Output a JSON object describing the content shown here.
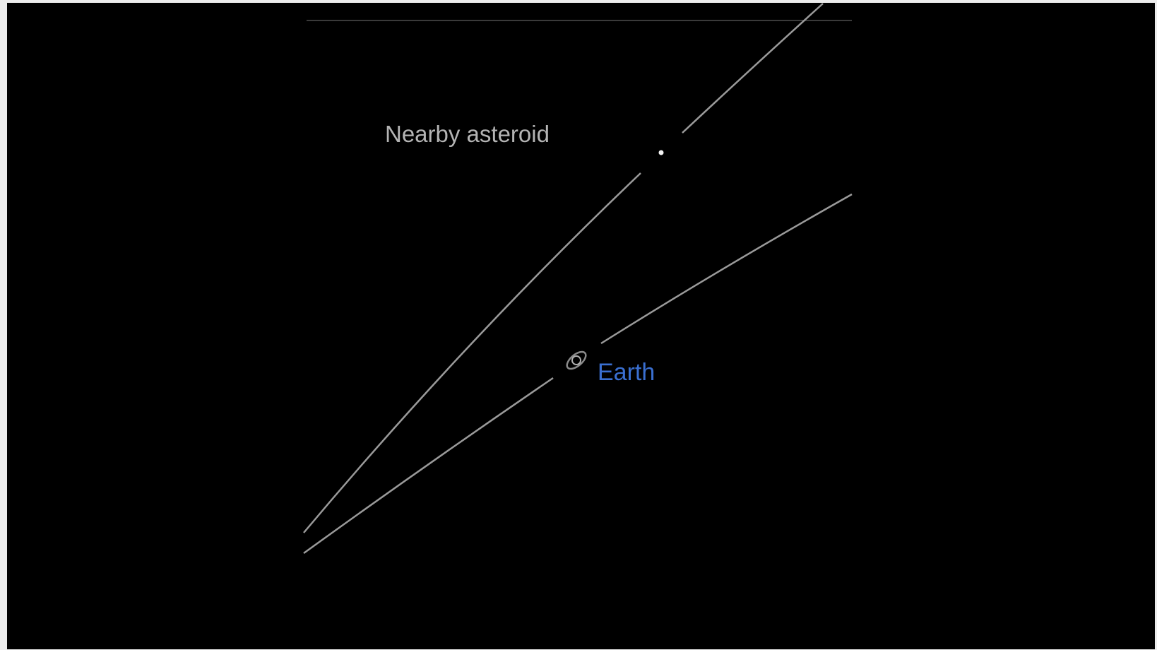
{
  "labels": {
    "asteroid": "Nearby asteroid",
    "earth": "Earth"
  }
}
